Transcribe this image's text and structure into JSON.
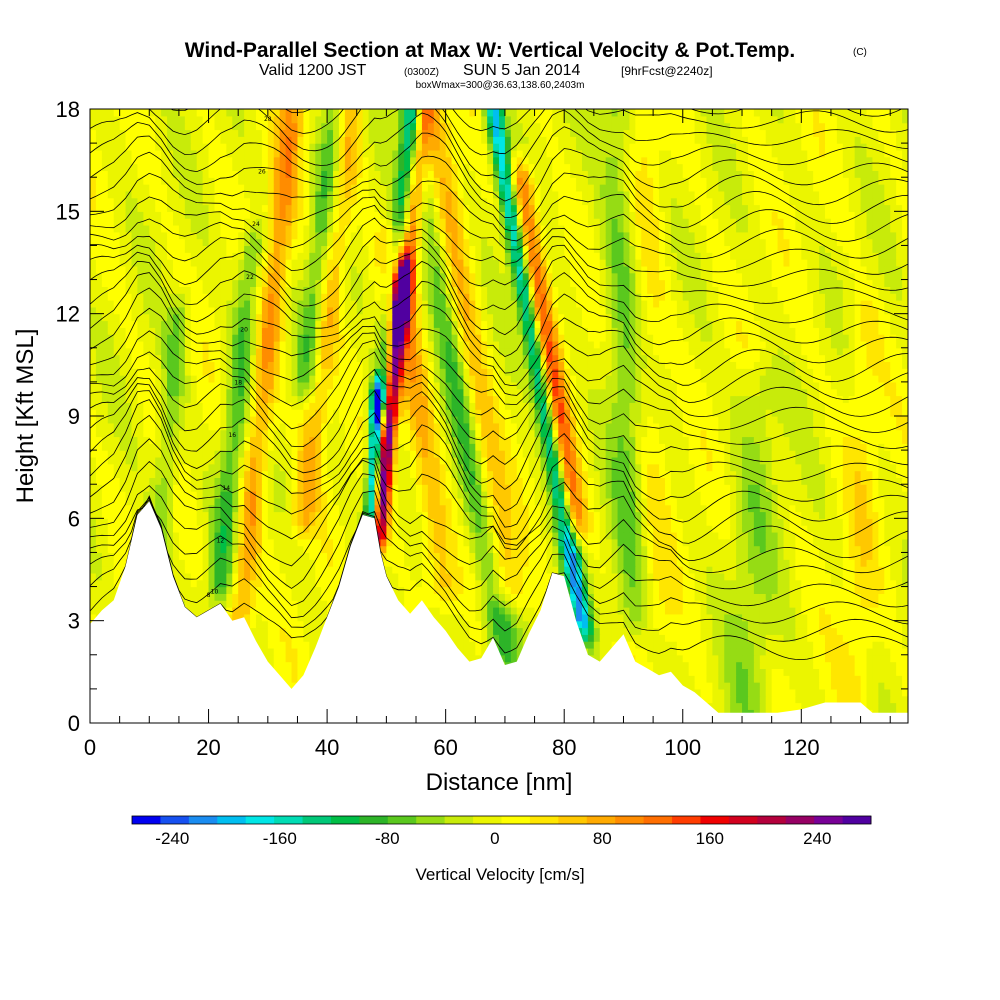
{
  "header": {
    "title_main": "Wind-Parallel Section at Max W: Vertical Velocity & Pot.Temp.",
    "title_mark": "(C)",
    "subtitle_a": "Valid 1200 JST",
    "subtitle_b": "(0300Z)",
    "subtitle_c": "SUN 5 Jan 2014",
    "subtitle_d": "[9hrFcst@2240z]",
    "subtitle_e": "boxWmax=300@36.63,138.60,2403m"
  },
  "chart_data": {
    "type": "heatmap",
    "title": "Wind-Parallel Section at Max W: Vertical Velocity & Pot.Temp.",
    "xlabel": "Distance [nm]",
    "ylabel": "Height [Kft MSL]",
    "xlim": [
      0,
      138
    ],
    "ylim": [
      0,
      18
    ],
    "x_ticks": [
      "0",
      "20",
      "40",
      "60",
      "80",
      "100",
      "120"
    ],
    "y_ticks": [
      "0",
      "3",
      "6",
      "9",
      "12",
      "15",
      "18"
    ],
    "colorbar": {
      "label": "Vertical Velocity [cm/s]",
      "min": -270,
      "max": 280,
      "tick_labels": [
        "-240",
        "-160",
        "-80",
        "0",
        "80",
        "160",
        "240"
      ],
      "tick_values": [
        -240,
        -160,
        -80,
        0,
        80,
        160,
        240
      ],
      "colors": [
        "#0000f0",
        "#1650f0",
        "#1a8cf0",
        "#00bef0",
        "#00e6e6",
        "#00dcb4",
        "#00c878",
        "#00be46",
        "#2db428",
        "#5ac81e",
        "#96dc14",
        "#c8eb0a",
        "#ebf500",
        "#ffff00",
        "#ffe600",
        "#ffc800",
        "#ffaa00",
        "#ff8c00",
        "#ff6e00",
        "#ff3c00",
        "#f00000",
        "#d2001e",
        "#b4003c",
        "#960064",
        "#780096",
        "#5000a0"
      ]
    },
    "terrain_kft": [
      [
        0,
        2.9
      ],
      [
        2,
        3.3
      ],
      [
        4,
        3.6
      ],
      [
        6,
        4.6
      ],
      [
        8,
        6.1
      ],
      [
        10,
        6.5
      ],
      [
        12,
        5.7
      ],
      [
        14,
        4.3
      ],
      [
        16,
        3.4
      ],
      [
        18,
        3.1
      ],
      [
        20,
        3.3
      ],
      [
        22,
        3.5
      ],
      [
        24,
        3.0
      ],
      [
        26,
        3.1
      ],
      [
        28,
        2.4
      ],
      [
        30,
        1.8
      ],
      [
        32,
        1.4
      ],
      [
        34,
        1.0
      ],
      [
        36,
        1.4
      ],
      [
        38,
        2.2
      ],
      [
        40,
        3.1
      ],
      [
        42,
        4.0
      ],
      [
        44,
        5.2
      ],
      [
        46,
        6.1
      ],
      [
        48,
        6.0
      ],
      [
        49,
        5.0
      ],
      [
        50,
        4.3
      ],
      [
        52,
        3.6
      ],
      [
        54,
        3.2
      ],
      [
        56,
        3.6
      ],
      [
        58,
        3.1
      ],
      [
        60,
        2.7
      ],
      [
        62,
        2.2
      ],
      [
        64,
        1.8
      ],
      [
        66,
        1.9
      ],
      [
        68,
        2.5
      ],
      [
        70,
        1.7
      ],
      [
        72,
        1.8
      ],
      [
        74,
        2.6
      ],
      [
        76,
        3.3
      ],
      [
        78,
        4.4
      ],
      [
        80,
        4.3
      ],
      [
        82,
        3.0
      ],
      [
        84,
        2.0
      ],
      [
        86,
        1.8
      ],
      [
        88,
        2.2
      ],
      [
        90,
        2.6
      ],
      [
        92,
        1.8
      ],
      [
        94,
        1.6
      ],
      [
        96,
        1.4
      ],
      [
        98,
        1.5
      ],
      [
        100,
        1.1
      ],
      [
        102,
        0.9
      ],
      [
        104,
        0.6
      ],
      [
        106,
        0.3
      ],
      [
        110,
        0.3
      ],
      [
        116,
        0.3
      ],
      [
        120,
        0.4
      ],
      [
        124,
        0.6
      ],
      [
        126,
        0.6
      ],
      [
        130,
        0.6
      ],
      [
        132,
        0.3
      ],
      [
        138,
        0.3
      ]
    ],
    "w_features": [
      {
        "x0": 48.8,
        "slope": 0.55,
        "amp": 280,
        "width": 1.4,
        "ymin": 5.5,
        "ymax": 13
      },
      {
        "x0": 47.6,
        "slope": 0.28,
        "amp": -260,
        "width": 1.2,
        "ymin": 5.8,
        "ymax": 9.5
      },
      {
        "x0": 47.3,
        "slope": 0.6,
        "amp": -130,
        "width": 1.6,
        "ymin": 9.5,
        "ymax": 18
      },
      {
        "x0": 48.5,
        "slope": 0.65,
        "amp": 140,
        "width": 1.8,
        "ymin": 12,
        "ymax": 18
      },
      {
        "x0": 80.0,
        "slope": -1.0,
        "amp": -200,
        "width": 1.6,
        "ymin": 3,
        "ymax": 18
      },
      {
        "x0": 81.5,
        "slope": -0.9,
        "amp": 140,
        "width": 2.2,
        "ymin": 6,
        "ymax": 16
      },
      {
        "x0": 66.0,
        "slope": -0.95,
        "amp": -110,
        "width": 2.6,
        "ymin": 2,
        "ymax": 18
      },
      {
        "x0": 68.0,
        "slope": -0.9,
        "amp": 90,
        "width": 3.0,
        "ymin": 4,
        "ymax": 18
      },
      {
        "x0": 58.0,
        "slope": -0.8,
        "amp": 70,
        "width": 2.6,
        "ymin": 4,
        "ymax": 14
      },
      {
        "x0": 27.0,
        "slope": 0.6,
        "amp": 90,
        "width": 2.2,
        "ymin": 3,
        "ymax": 18
      },
      {
        "x0": 23.0,
        "slope": 0.55,
        "amp": -80,
        "width": 2.2,
        "ymin": 4,
        "ymax": 14
      },
      {
        "x0": 36.0,
        "slope": 0.7,
        "amp": 70,
        "width": 2.2,
        "ymin": 6,
        "ymax": 18
      },
      {
        "x0": 34.0,
        "slope": 0.6,
        "amp": -70,
        "width": 2.0,
        "ymin": 10,
        "ymax": 18
      },
      {
        "x0": 12.0,
        "slope": 0.5,
        "amp": -60,
        "width": 2.0,
        "ymin": 4,
        "ymax": 12
      },
      {
        "x0": 91.0,
        "slope": -0.2,
        "amp": -60,
        "width": 3.0,
        "ymin": 3,
        "ymax": 18
      },
      {
        "x0": 95.0,
        "slope": -0.1,
        "amp": 30,
        "width": 3.0,
        "ymin": 3,
        "ymax": 18
      },
      {
        "x0": 112.0,
        "slope": 0.2,
        "amp": -40,
        "width": 4.0,
        "ymin": 0,
        "ymax": 10
      },
      {
        "x0": 130.0,
        "slope": 0.1,
        "amp": 30,
        "width": 3.0,
        "ymin": 0,
        "ymax": 12
      }
    ],
    "isentropes": {
      "count": 34,
      "base_kft": 2.2,
      "top_kft": 19.2,
      "labels_shown": [
        "8",
        "10",
        "12",
        "14",
        "16",
        "18",
        "20",
        "22",
        "24",
        "26",
        "28",
        "30"
      ]
    }
  }
}
